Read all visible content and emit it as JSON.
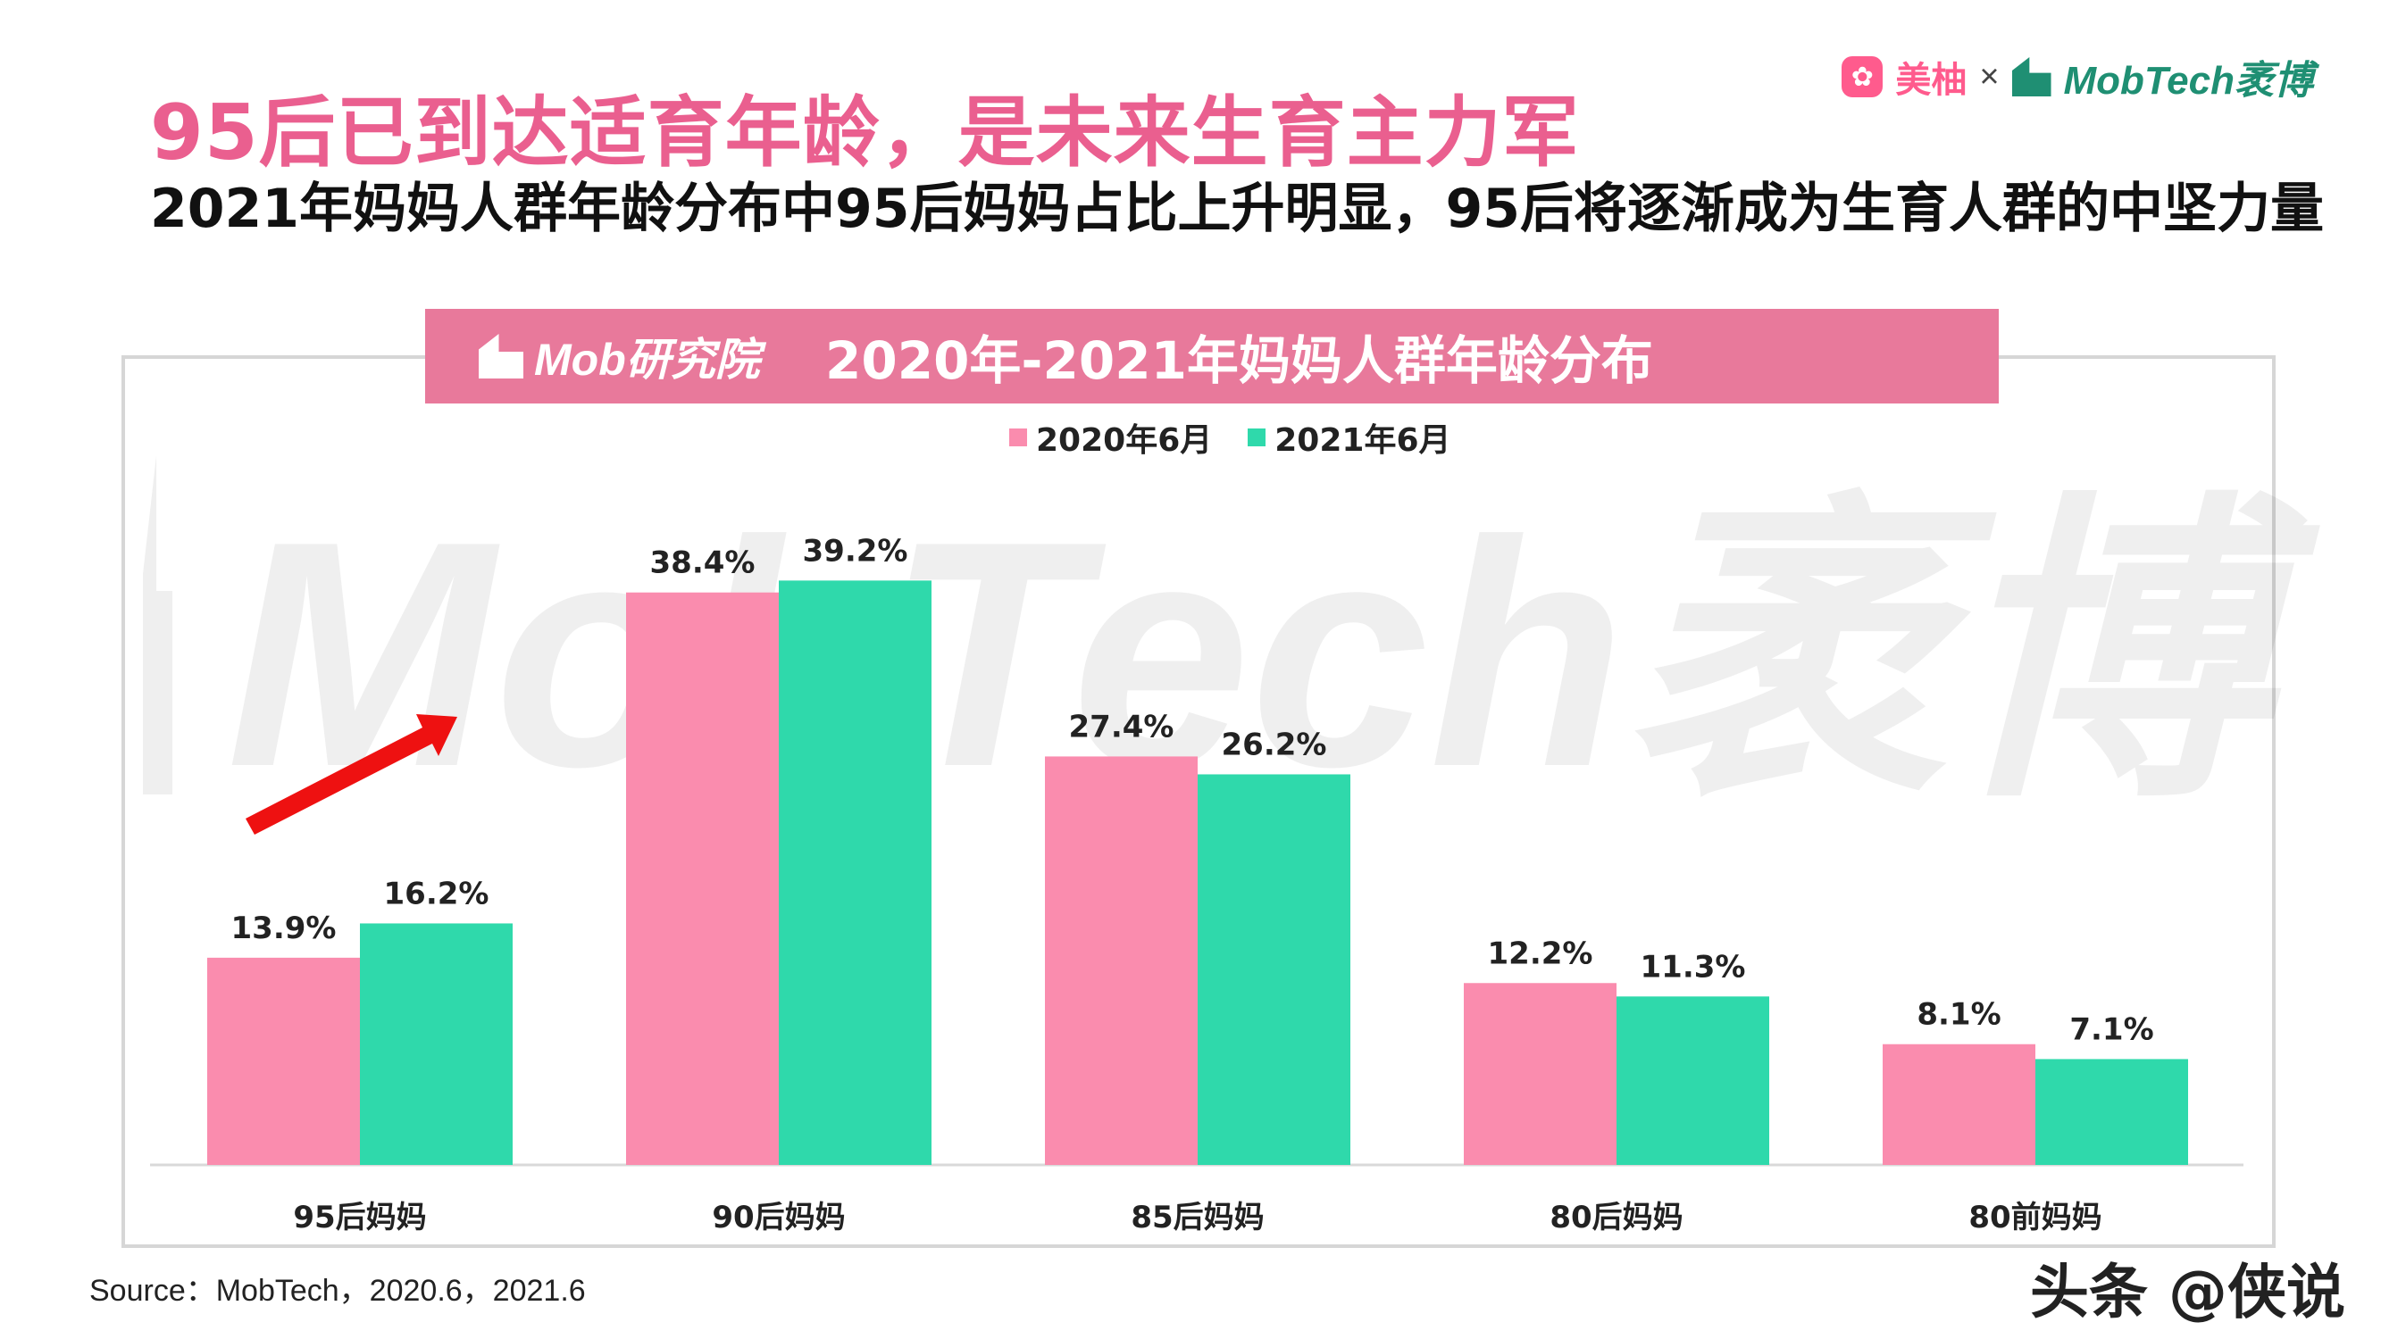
{
  "header": {
    "title": "95后已到达适育年龄，是未来生育主力军",
    "subtitle": "2021年妈妈人群年龄分布中95后妈妈占比上升明显，95后将逐渐成为生育人群的中坚力量"
  },
  "brand": {
    "meiyou": "美柚",
    "times": "×",
    "mobtech": "MobTech袤博"
  },
  "banner": {
    "logo_text": "Mob研究院"
  },
  "watermark": {
    "text": "MobTech袤博"
  },
  "colors": {
    "series_2020": "#fa8cae",
    "series_2021": "#2fd9ab",
    "title_pink": "#ea5f8f",
    "banner": "#e8799b",
    "arrow": "#ee1111"
  },
  "chart_data": {
    "type": "bar",
    "title": "2020年-2021年妈妈人群年龄分布",
    "categories": [
      "95后妈妈",
      "90后妈妈",
      "85后妈妈",
      "80后妈妈",
      "80前妈妈"
    ],
    "series": [
      {
        "name": "2020年6月",
        "values": [
          13.9,
          38.4,
          27.4,
          12.2,
          8.1
        ],
        "labels": [
          "13.9%",
          "38.4%",
          "27.4%",
          "12.2%",
          "8.1%"
        ]
      },
      {
        "name": "2021年6月",
        "values": [
          16.2,
          39.2,
          26.2,
          11.3,
          7.1
        ],
        "labels": [
          "16.2%",
          "39.2%",
          "26.2%",
          "11.3%",
          "7.1%"
        ]
      }
    ],
    "ylim": [
      0,
      45
    ],
    "grid": false,
    "legend_position": "top-center",
    "annotation": "red-up-arrow"
  },
  "source": "Source：MobTech，2020.6，2021.6",
  "footer_credit": "头条 @侠说"
}
